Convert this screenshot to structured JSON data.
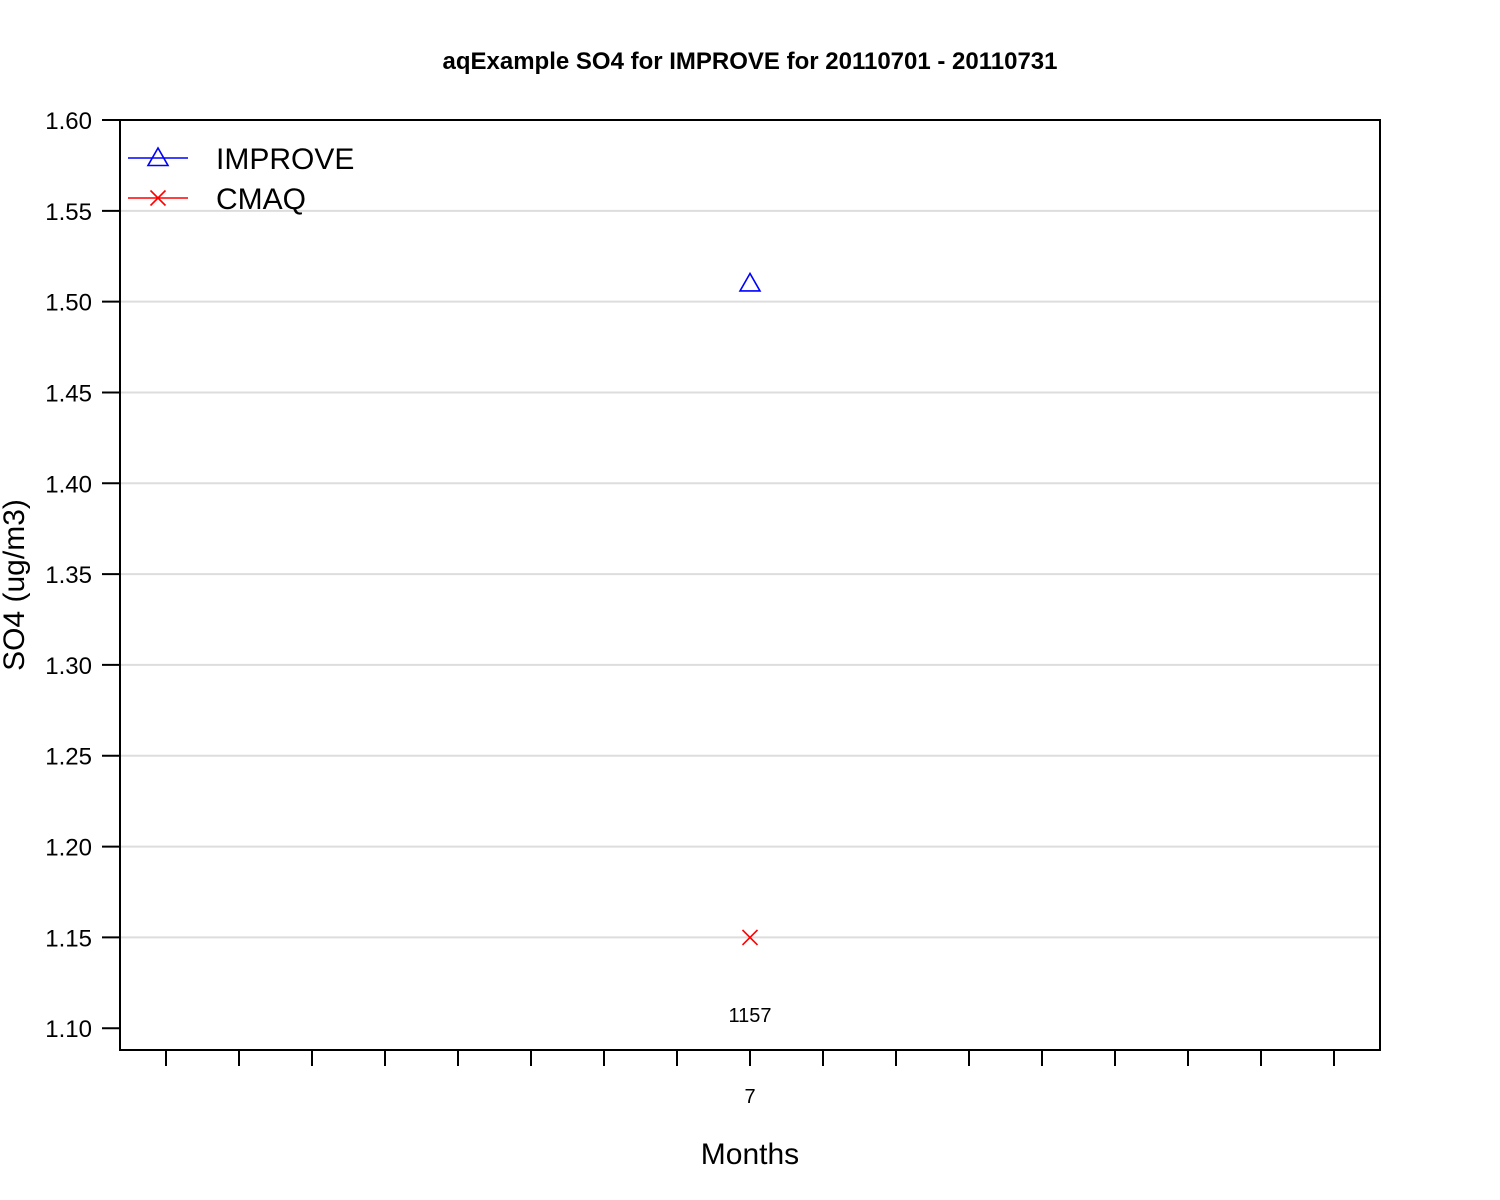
{
  "chart_data": {
    "type": "scatter",
    "title": "aqExample SO4 for IMPROVE for 20110701 - 20110731",
    "xlabel": "Months",
    "ylabel": "SO4 (ug/m3)",
    "ylim": [
      1.088,
      1.6
    ],
    "yticks": [
      "1.10",
      "1.15",
      "1.20",
      "1.25",
      "1.30",
      "1.35",
      "1.40",
      "1.45",
      "1.50",
      "1.55",
      "1.60"
    ],
    "ytick_values": [
      1.1,
      1.15,
      1.2,
      1.25,
      1.3,
      1.35,
      1.4,
      1.45,
      1.5,
      1.55,
      1.6
    ],
    "grid": true,
    "legend_position": "top-left",
    "categories": [
      "7"
    ],
    "minor_tick_count": 17,
    "series": [
      {
        "name": "IMPROVE",
        "marker": "triangle",
        "color": "#0000ff",
        "x": [
          "7"
        ],
        "values": [
          1.51
        ]
      },
      {
        "name": "CMAQ",
        "marker": "x",
        "color": "#ff0000",
        "x": [
          "7"
        ],
        "values": [
          1.15
        ]
      }
    ],
    "annotations": [
      {
        "text": "1157",
        "x": "7",
        "y": 1.1
      }
    ]
  }
}
